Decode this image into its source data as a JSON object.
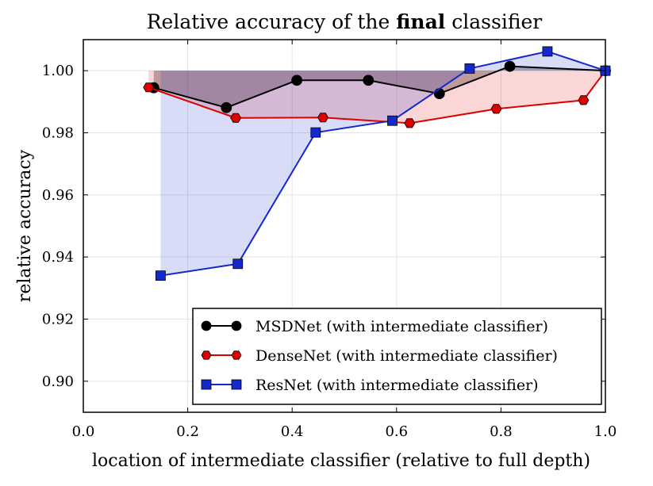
{
  "chart_data": {
    "type": "line",
    "title_prefix": "Relative accuracy of the ",
    "title_bold": "final",
    "title_suffix": " classifier",
    "xlabel": "location of intermediate classifier (relative to full depth)",
    "ylabel": "relative accuracy",
    "xlim": [
      0.0,
      1.0
    ],
    "ylim": [
      0.89,
      1.01
    ],
    "xticks": [
      "0.0",
      "0.2",
      "0.4",
      "0.6",
      "0.8",
      "1.0"
    ],
    "yticks": [
      "0.90",
      "0.92",
      "0.94",
      "0.96",
      "0.98",
      "1.00"
    ],
    "grid": true,
    "legend_position": "bottom-right",
    "series": [
      {
        "name": "MSDNet (with intermediate classifier)",
        "color": "#000000",
        "marker": "circle",
        "x": [
          0.135,
          0.274,
          0.409,
          0.546,
          0.682,
          0.817,
          1.0
        ],
        "y": [
          0.9945,
          0.9881,
          0.9969,
          0.9969,
          0.9926,
          1.0014,
          1.0
        ]
      },
      {
        "name": "DenseNet (with intermediate classifier)",
        "color": "#dd0000",
        "marker": "hexagon",
        "x": [
          0.125,
          0.292,
          0.459,
          0.625,
          0.791,
          0.958,
          1.0
        ],
        "y": [
          0.9946,
          0.9848,
          0.9849,
          0.9831,
          0.9877,
          0.9905,
          1.0
        ]
      },
      {
        "name": "ResNet (with intermediate classifier)",
        "color": "#1428cc",
        "marker": "square",
        "x": [
          0.148,
          0.296,
          0.445,
          0.592,
          0.74,
          0.889,
          1.0
        ],
        "y": [
          0.934,
          0.9378,
          0.9801,
          0.9839,
          1.0007,
          1.0062,
          1.0
        ]
      }
    ]
  }
}
